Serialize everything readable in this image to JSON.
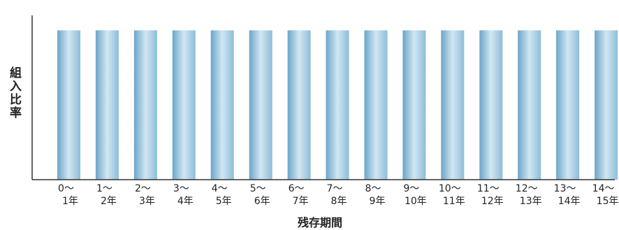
{
  "chart_data": {
    "type": "bar",
    "xlabel": "残存期間",
    "ylabel": "組入比率",
    "categories": [
      [
        "0〜",
        "1年"
      ],
      [
        "1〜",
        "2年"
      ],
      [
        "2〜",
        "3年"
      ],
      [
        "3〜",
        "4年"
      ],
      [
        "4〜",
        "5年"
      ],
      [
        "5〜",
        "6年"
      ],
      [
        "6〜",
        "7年"
      ],
      [
        "7〜",
        "8年"
      ],
      [
        "8〜",
        "9年"
      ],
      [
        "9〜",
        "10年"
      ],
      [
        "10〜",
        "11年"
      ],
      [
        "11〜",
        "12年"
      ],
      [
        "12〜",
        "13年"
      ],
      [
        "13〜",
        "14年"
      ],
      [
        "14〜",
        "15年"
      ]
    ],
    "values": [
      1,
      1,
      1,
      1,
      1,
      1,
      1,
      1,
      1,
      1,
      1,
      1,
      1,
      1,
      1
    ],
    "ylim": [
      0,
      1.1
    ],
    "grid": false,
    "colors": {
      "bar_light": "#d2e6f2",
      "bar_mid": "#8cbdd8",
      "bar_dark": "#6aa6c8",
      "axis": "#333333"
    }
  }
}
